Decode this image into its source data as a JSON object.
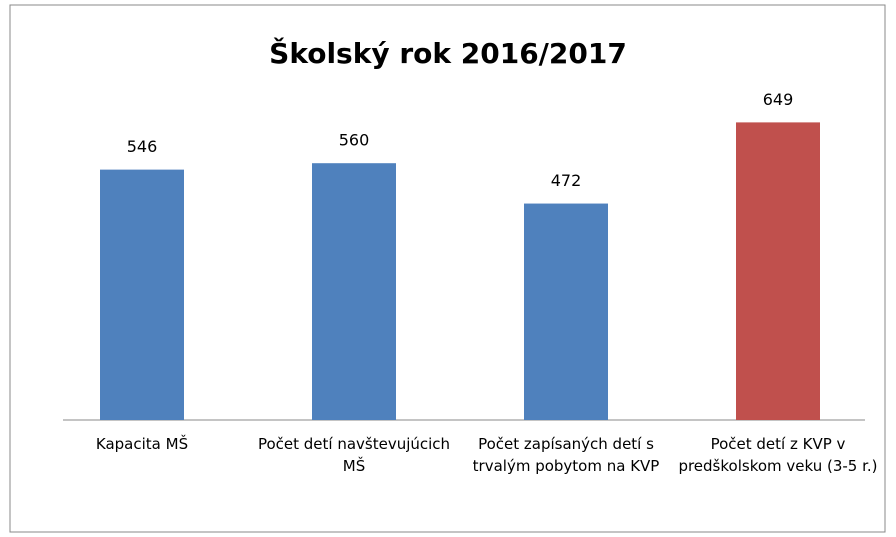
{
  "chart_data": {
    "type": "bar",
    "title": "Školský rok 2016/2017",
    "categories": [
      "Kapacita MŠ",
      "Počet detí navštevujúcich MŠ",
      "Počet zapísaných detí s trvalým pobytom na KVP",
      "Počet detí z KVP v predškolskom veku (3-5 r.)"
    ],
    "values": [
      546,
      560,
      472,
      649
    ],
    "colors": [
      "#4f81bd",
      "#4f81bd",
      "#4f81bd",
      "#c0504d"
    ],
    "ylim": [
      0,
      700
    ]
  }
}
